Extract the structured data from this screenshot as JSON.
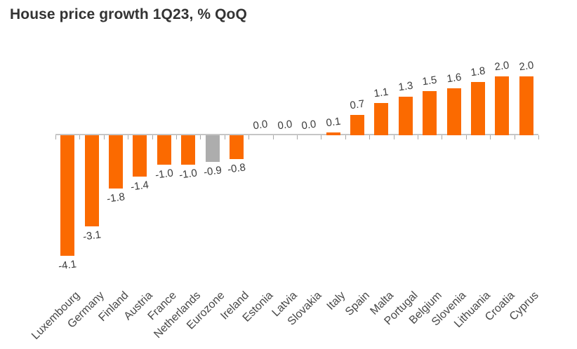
{
  "title": "House price growth 1Q23, % QoQ",
  "colors": {
    "bar": "#fb6a00",
    "highlight_bar": "#adadad",
    "axis_line": "#c6c6c6",
    "tick": "#a8a8a8",
    "title_text": "#333333",
    "value_text": "#3c3c3c",
    "category_text": "#474747",
    "background": "#ffffff"
  },
  "chart_data": {
    "type": "bar",
    "title": "House price growth 1Q23, % QoQ",
    "xlabel": "",
    "ylabel": "",
    "grid": false,
    "legend_position": "none",
    "ylim": [
      -4.5,
      2.3
    ],
    "categories": [
      "Luxembourg",
      "Germany",
      "Finland",
      "Austria",
      "France",
      "Netherlands",
      "Eurozone",
      "Ireland",
      "Estonia",
      "Latvia",
      "Slovakia",
      "Italy",
      "Spain",
      "Malta",
      "Portugal",
      "Belgium",
      "Slovenia",
      "Lithuania",
      "Croatia",
      "Cyprus"
    ],
    "values": [
      -4.1,
      -3.1,
      -1.8,
      -1.4,
      -1.0,
      -1.0,
      -0.9,
      -0.8,
      0.0,
      0.0,
      0.0,
      0.1,
      0.7,
      1.1,
      1.3,
      1.5,
      1.6,
      1.8,
      2.0,
      2.0
    ],
    "value_labels": [
      "-4.1",
      "-3.1",
      "-1.8",
      "-1.4",
      "-1.0",
      "-1.0",
      "-0.9",
      "-0.8",
      "0.0",
      "0.0",
      "0.0",
      "0.1",
      "0.7",
      "1.1",
      "1.3",
      "1.5",
      "1.6",
      "1.8",
      "2.0",
      "2.0"
    ],
    "highlighted_category": "Eurozone",
    "data_label_rotation_deg": -8,
    "category_label_rotation_deg": -45
  }
}
